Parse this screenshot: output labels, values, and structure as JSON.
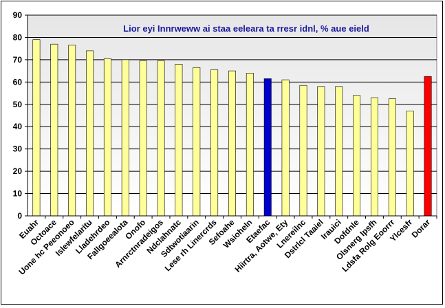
{
  "chart_data": {
    "type": "bar",
    "title": "Lior eyi Innrweww ai staa eeleara ta rresr idnl, % aue eield",
    "xlabel": "",
    "ylabel": "",
    "ylim": [
      0,
      90
    ],
    "yticks": [
      0,
      10,
      20,
      30,
      40,
      50,
      60,
      70,
      80,
      90
    ],
    "grid": true,
    "categories": [
      "Euahr",
      "Octoace",
      "Uone hc Peeonoeo",
      "Islewfelaritu",
      "Lladehrdeo",
      "Fallgoeealota",
      "Onofo",
      "Arnrctnradeigos",
      "Ndclahnatc",
      "Sdtwotiaarin",
      "Lese rh Linercrds",
      "Sefoahe",
      "Wsioheln",
      "Etaefac",
      "Hiirtra, Aotwe, Ety",
      "Lnereilnc",
      "Dstrlcl Taaiel",
      "Irauici",
      "Dofdnle",
      "Olsnerg Ipsfh",
      "Ldsfa Rolg Eoorrr",
      "Ylcesfr",
      "Dorar"
    ],
    "values": [
      79,
      77,
      76.5,
      74,
      70.5,
      70,
      69.5,
      69.5,
      68,
      66.5,
      65.5,
      65,
      64,
      61.5,
      61,
      58.5,
      58,
      58,
      54,
      53,
      52.5,
      47,
      62.5
    ],
    "colors": {
      "default": "#ffff99",
      "highlight_blue": "#0000cc",
      "highlight_red": "#ff0000",
      "plot_bg_top": "#e6e6e6",
      "plot_bg_bottom": "#ffffff"
    },
    "highlight": {
      "Etaefac": "highlight_blue",
      "Dorar": "highlight_red"
    }
  }
}
